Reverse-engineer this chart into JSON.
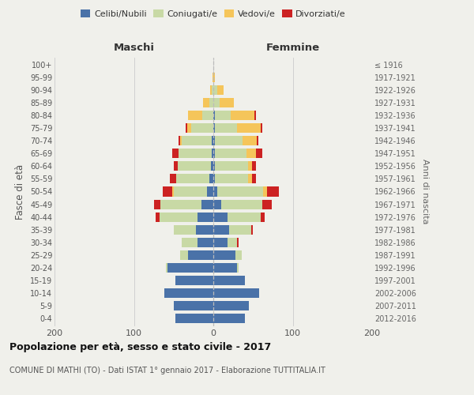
{
  "age_groups": [
    "0-4",
    "5-9",
    "10-14",
    "15-19",
    "20-24",
    "25-29",
    "30-34",
    "35-39",
    "40-44",
    "45-49",
    "50-54",
    "55-59",
    "60-64",
    "65-69",
    "70-74",
    "75-79",
    "80-84",
    "85-89",
    "90-94",
    "95-99",
    "100+"
  ],
  "birth_years": [
    "2012-2016",
    "2007-2011",
    "2002-2006",
    "1997-2001",
    "1992-1996",
    "1987-1991",
    "1982-1986",
    "1977-1981",
    "1972-1976",
    "1967-1971",
    "1962-1966",
    "1957-1961",
    "1952-1956",
    "1947-1951",
    "1942-1946",
    "1937-1941",
    "1932-1936",
    "1927-1931",
    "1922-1926",
    "1917-1921",
    "≤ 1916"
  ],
  "maschi": {
    "celibi": [
      48,
      50,
      62,
      48,
      58,
      32,
      20,
      22,
      20,
      15,
      8,
      5,
      3,
      2,
      2,
      0,
      0,
      0,
      0,
      0,
      0
    ],
    "coniugati": [
      0,
      0,
      0,
      0,
      2,
      10,
      20,
      28,
      48,
      52,
      42,
      42,
      42,
      42,
      38,
      28,
      14,
      5,
      2,
      0,
      0
    ],
    "vedovi": [
      0,
      0,
      0,
      0,
      0,
      0,
      0,
      0,
      0,
      0,
      2,
      0,
      0,
      0,
      2,
      5,
      18,
      8,
      2,
      1,
      0
    ],
    "divorziati": [
      0,
      0,
      0,
      0,
      0,
      0,
      0,
      0,
      5,
      8,
      12,
      8,
      5,
      8,
      2,
      2,
      0,
      0,
      0,
      0,
      0
    ]
  },
  "femmine": {
    "nubili": [
      40,
      45,
      58,
      40,
      30,
      28,
      18,
      20,
      18,
      10,
      5,
      2,
      2,
      2,
      2,
      2,
      2,
      0,
      0,
      0,
      0
    ],
    "coniugate": [
      0,
      0,
      0,
      0,
      2,
      8,
      12,
      28,
      42,
      52,
      58,
      42,
      42,
      40,
      35,
      28,
      20,
      8,
      5,
      0,
      0
    ],
    "vedove": [
      0,
      0,
      0,
      0,
      0,
      0,
      0,
      0,
      0,
      0,
      5,
      5,
      5,
      12,
      18,
      30,
      30,
      18,
      8,
      2,
      0
    ],
    "divorziate": [
      0,
      0,
      0,
      0,
      0,
      0,
      2,
      2,
      5,
      12,
      15,
      5,
      5,
      8,
      2,
      2,
      2,
      0,
      0,
      0,
      0
    ]
  },
  "colors": {
    "celibi": "#4a72a8",
    "coniugati": "#c8d9a5",
    "vedovi": "#f5c55a",
    "divorziati": "#cc2222"
  },
  "xlim": 200,
  "title": "Popolazione per età, sesso e stato civile - 2017",
  "subtitle": "COMUNE DI MATHI (TO) - Dati ISTAT 1° gennaio 2017 - Elaborazione TUTTITALIA.IT",
  "ylabel_left": "Fasce di età",
  "ylabel_right": "Anni di nascita",
  "background_color": "#f0f0eb"
}
